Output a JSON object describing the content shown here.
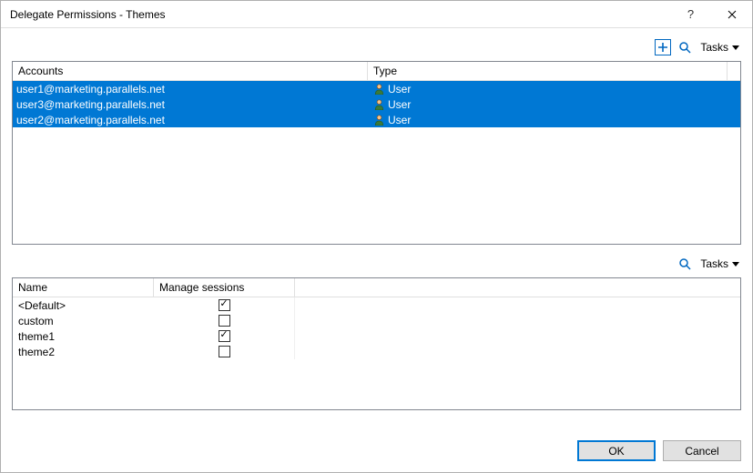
{
  "window": {
    "title": "Delegate Permissions - Themes"
  },
  "toolbar": {
    "tasks_label": "Tasks"
  },
  "accounts": {
    "columns": {
      "account": "Accounts",
      "type": "Type"
    },
    "rows": [
      {
        "account": "user1@marketing.parallels.net",
        "type": "User",
        "selected": true
      },
      {
        "account": "user3@marketing.parallels.net",
        "type": "User",
        "selected": true
      },
      {
        "account": "user2@marketing.parallels.net",
        "type": "User",
        "selected": true
      }
    ]
  },
  "themes": {
    "columns": {
      "name": "Name",
      "manage": "Manage sessions"
    },
    "rows": [
      {
        "name": "<Default>",
        "manage": true
      },
      {
        "name": "custom",
        "manage": false
      },
      {
        "name": "theme1",
        "manage": true
      },
      {
        "name": "theme2",
        "manage": false
      }
    ]
  },
  "footer": {
    "ok": "OK",
    "cancel": "Cancel"
  },
  "colors": {
    "selection_bg": "#0078d4",
    "selection_fg": "#ffffff",
    "accent": "#0067c0"
  }
}
